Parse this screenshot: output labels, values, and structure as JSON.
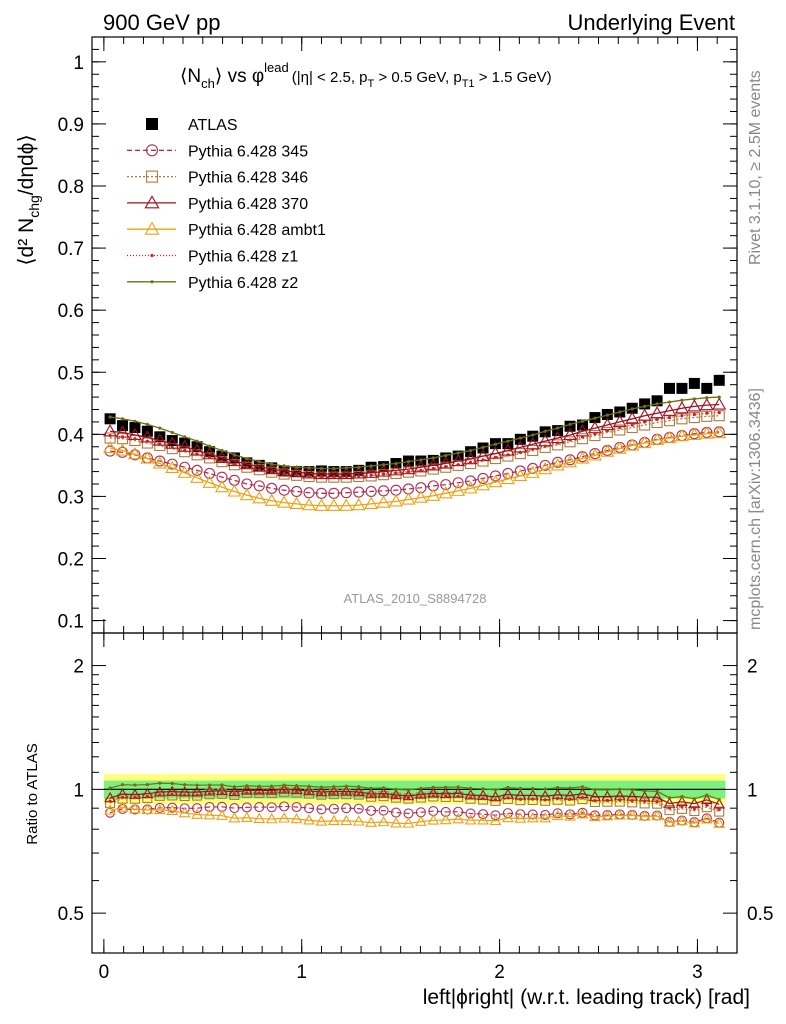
{
  "header": {
    "left": "900 GeV pp",
    "right": "Underlying Event"
  },
  "side": {
    "rivet": "Rivet 3.1.10, ≥ 2.5M events",
    "mcplots": "mcplots.cern.ch [arXiv:1306.3436]"
  },
  "watermark": "ATLAS_2010_S8894728",
  "title": {
    "main": "⟨N",
    "sub_ch": "ch",
    "vs": "⟩ vs φ",
    "sup_lead": "lead",
    "cuts": "(|η| < 2.5, p",
    "cuts_sub_t": "T",
    "cuts2": " > 0.5 GeV, p",
    "cuts_sub_t1": "T1",
    "cuts3": " > 1.5 GeV)"
  },
  "y_label_main": "⟨d² N",
  "y_label_sub": "chg",
  "y_label_tail": "/dηdϕ⟩",
  "ratio_ylabel": "Ratio to ATLAS",
  "xlabel": "left|ϕright| (w.r.t. leading track) [rad]",
  "colors": {
    "atlas": "#000000",
    "p345": "#b03050",
    "p346": "#b07a40",
    "p370": "#a01020",
    "ambt1": "#f0a010",
    "z1": "#d02020",
    "z2": "#707010",
    "band_green": "#7ef07e",
    "band_yellow": "#ffff80"
  },
  "chart_data": {
    "type": "scatter",
    "x_range": [
      -0.06,
      3.2
    ],
    "main_ylim": [
      0.08,
      1.04
    ],
    "main_yticks": [
      "0.1",
      "0.2",
      "0.3",
      "0.4",
      "0.5",
      "0.6",
      "0.7",
      "0.8",
      "0.9",
      "1"
    ],
    "ratio_ylim": [
      0.4,
      2.4
    ],
    "ratio_yticks": [
      "0.5",
      "1",
      "2"
    ],
    "xticks": [
      "0",
      "1",
      "2",
      "3"
    ],
    "x": [
      0.0314,
      0.0942,
      0.157,
      0.2199,
      0.2827,
      0.3456,
      0.4084,
      0.4712,
      0.5341,
      0.5969,
      0.6597,
      0.7226,
      0.7854,
      0.8482,
      0.9111,
      0.9739,
      1.0367,
      1.0996,
      1.1624,
      1.2252,
      1.2881,
      1.3509,
      1.4137,
      1.4765,
      1.5394,
      1.6022,
      1.665,
      1.7279,
      1.7907,
      1.8535,
      1.9164,
      1.9792,
      2.042,
      2.1049,
      2.1677,
      2.2305,
      2.2934,
      2.3562,
      2.419,
      2.4819,
      2.5447,
      2.6075,
      2.6704,
      2.7332,
      2.796,
      2.8588,
      2.9217,
      2.9845,
      3.0473,
      3.1102
    ],
    "series": [
      {
        "name": "ATLAS",
        "key": "atlas",
        "marker": "square",
        "values": [
          0.425,
          0.414,
          0.411,
          0.405,
          0.396,
          0.39,
          0.386,
          0.38,
          0.372,
          0.365,
          0.362,
          0.354,
          0.35,
          0.346,
          0.341,
          0.34,
          0.34,
          0.341,
          0.34,
          0.34,
          0.342,
          0.347,
          0.348,
          0.353,
          0.357,
          0.357,
          0.358,
          0.362,
          0.365,
          0.372,
          0.378,
          0.385,
          0.385,
          0.392,
          0.397,
          0.404,
          0.406,
          0.413,
          0.415,
          0.427,
          0.432,
          0.436,
          0.442,
          0.449,
          0.454,
          0.474,
          0.474,
          0.482,
          0.474,
          0.487
        ]
      },
      {
        "name": "Pythia 6.428 345",
        "key": "p345",
        "marker": "circle",
        "dash": "5,3",
        "values": [
          0.373,
          0.371,
          0.367,
          0.362,
          0.357,
          0.352,
          0.347,
          0.342,
          0.337,
          0.331,
          0.326,
          0.32,
          0.317,
          0.313,
          0.31,
          0.308,
          0.306,
          0.305,
          0.305,
          0.306,
          0.307,
          0.308,
          0.309,
          0.31,
          0.312,
          0.314,
          0.317,
          0.319,
          0.322,
          0.325,
          0.329,
          0.333,
          0.337,
          0.341,
          0.345,
          0.35,
          0.355,
          0.359,
          0.364,
          0.369,
          0.374,
          0.379,
          0.383,
          0.387,
          0.392,
          0.395,
          0.398,
          0.401,
          0.403,
          0.404
        ]
      },
      {
        "name": "Pythia 6.428 346",
        "key": "p346",
        "marker": "square-open",
        "dash": "2,2",
        "values": [
          0.394,
          0.393,
          0.39,
          0.386,
          0.382,
          0.377,
          0.372,
          0.367,
          0.362,
          0.356,
          0.351,
          0.347,
          0.343,
          0.339,
          0.336,
          0.334,
          0.332,
          0.331,
          0.331,
          0.331,
          0.332,
          0.333,
          0.335,
          0.337,
          0.339,
          0.341,
          0.344,
          0.347,
          0.35,
          0.353,
          0.357,
          0.361,
          0.365,
          0.369,
          0.374,
          0.379,
          0.383,
          0.388,
          0.393,
          0.398,
          0.403,
          0.407,
          0.411,
          0.415,
          0.419,
          0.422,
          0.425,
          0.427,
          0.429,
          0.43
        ]
      },
      {
        "name": "Pythia 6.428 370",
        "key": "p370",
        "marker": "triangle-open",
        "dash": "",
        "values": [
          0.405,
          0.403,
          0.399,
          0.395,
          0.39,
          0.385,
          0.38,
          0.374,
          0.368,
          0.362,
          0.357,
          0.352,
          0.348,
          0.344,
          0.341,
          0.339,
          0.337,
          0.336,
          0.336,
          0.336,
          0.337,
          0.338,
          0.34,
          0.342,
          0.344,
          0.347,
          0.35,
          0.353,
          0.357,
          0.36,
          0.365,
          0.369,
          0.374,
          0.379,
          0.384,
          0.389,
          0.394,
          0.399,
          0.405,
          0.41,
          0.415,
          0.42,
          0.425,
          0.43,
          0.434,
          0.438,
          0.442,
          0.445,
          0.447,
          0.448
        ]
      },
      {
        "name": "Pythia 6.428 ambt1",
        "key": "ambt1",
        "marker": "triangle-open",
        "dash": "",
        "values": [
          0.378,
          0.374,
          0.368,
          0.361,
          0.353,
          0.346,
          0.338,
          0.33,
          0.322,
          0.315,
          0.308,
          0.302,
          0.297,
          0.293,
          0.29,
          0.288,
          0.286,
          0.285,
          0.285,
          0.285,
          0.286,
          0.288,
          0.29,
          0.292,
          0.295,
          0.298,
          0.301,
          0.305,
          0.309,
          0.313,
          0.318,
          0.323,
          0.328,
          0.333,
          0.338,
          0.344,
          0.35,
          0.355,
          0.361,
          0.366,
          0.372,
          0.377,
          0.382,
          0.386,
          0.391,
          0.394,
          0.397,
          0.399,
          0.401,
          0.402
        ]
      },
      {
        "name": "Pythia 6.428 z1",
        "key": "z1",
        "marker": "dot",
        "dash": "1,2",
        "values": [
          0.398,
          0.396,
          0.393,
          0.389,
          0.384,
          0.379,
          0.374,
          0.368,
          0.363,
          0.357,
          0.352,
          0.347,
          0.343,
          0.34,
          0.337,
          0.335,
          0.333,
          0.332,
          0.332,
          0.332,
          0.333,
          0.334,
          0.336,
          0.338,
          0.34,
          0.342,
          0.345,
          0.348,
          0.351,
          0.355,
          0.359,
          0.363,
          0.367,
          0.371,
          0.376,
          0.381,
          0.386,
          0.391,
          0.396,
          0.401,
          0.406,
          0.411,
          0.415,
          0.42,
          0.424,
          0.427,
          0.43,
          0.432,
          0.434,
          0.435
        ]
      },
      {
        "name": "Pythia 6.428 z2",
        "key": "z2",
        "marker": "dot",
        "dash": "",
        "values": [
          0.428,
          0.425,
          0.421,
          0.416,
          0.41,
          0.403,
          0.396,
          0.389,
          0.381,
          0.374,
          0.367,
          0.361,
          0.356,
          0.352,
          0.349,
          0.347,
          0.346,
          0.345,
          0.345,
          0.346,
          0.347,
          0.349,
          0.351,
          0.353,
          0.356,
          0.359,
          0.362,
          0.366,
          0.37,
          0.374,
          0.379,
          0.384,
          0.389,
          0.394,
          0.399,
          0.405,
          0.41,
          0.416,
          0.421,
          0.426,
          0.431,
          0.436,
          0.441,
          0.445,
          0.449,
          0.452,
          0.455,
          0.457,
          0.459,
          0.46
        ]
      }
    ]
  }
}
